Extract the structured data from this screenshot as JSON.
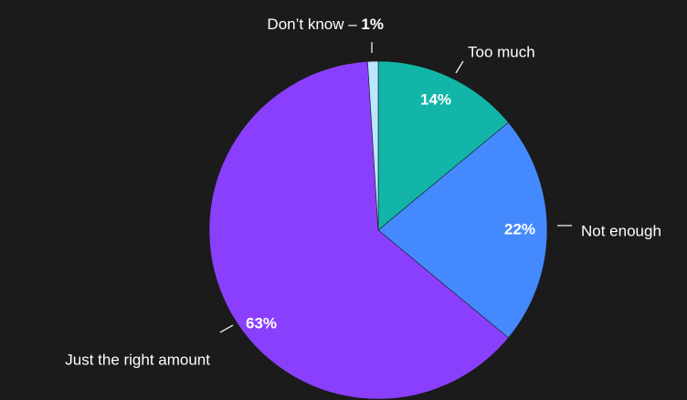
{
  "chart_data": {
    "type": "pie",
    "slices": [
      {
        "label": "Too much",
        "value": 14,
        "display": "14%",
        "color": "#12b5a8"
      },
      {
        "label": "Not enough",
        "value": 22,
        "display": "22%",
        "color": "#4589ff"
      },
      {
        "label": "Just the right amount",
        "value": 63,
        "display": "63%",
        "color": "#8a3ffc"
      },
      {
        "label": "Don’t know",
        "value": 1,
        "display": "1%",
        "color": "#bae6ff"
      }
    ]
  },
  "colors": {
    "background": "#1b1b1b",
    "text": "#ffffff"
  }
}
